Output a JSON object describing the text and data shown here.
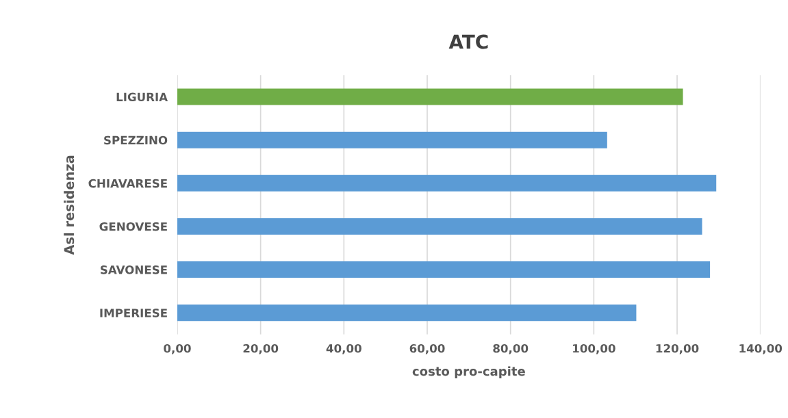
{
  "chart_data": {
    "type": "bar",
    "orientation": "horizontal",
    "title": "ATC",
    "xlabel": "costo pro-capite",
    "ylabel": "Asl residenza",
    "categories": [
      "LIGURIA",
      "SPEZZINO",
      "CHIAVARESE",
      "GENOVESE",
      "SAVONESE",
      "IMPERIESE"
    ],
    "values": [
      121.4,
      103.2,
      129.4,
      126.0,
      127.9,
      110.2
    ],
    "colors": [
      "#70ad47",
      "#5b9bd5",
      "#5b9bd5",
      "#5b9bd5",
      "#5b9bd5",
      "#5b9bd5"
    ],
    "xlim": [
      0,
      140
    ],
    "xticks": [
      {
        "value": 0,
        "label": "0,00"
      },
      {
        "value": 20,
        "label": "20,00"
      },
      {
        "value": 40,
        "label": "40,00"
      },
      {
        "value": 60,
        "label": "60,00"
      },
      {
        "value": 80,
        "label": "80,00"
      },
      {
        "value": 100,
        "label": "100,00"
      },
      {
        "value": 120,
        "label": "120,00"
      },
      {
        "value": 140,
        "label": "140,00"
      }
    ],
    "grid": "x",
    "legend": false
  }
}
